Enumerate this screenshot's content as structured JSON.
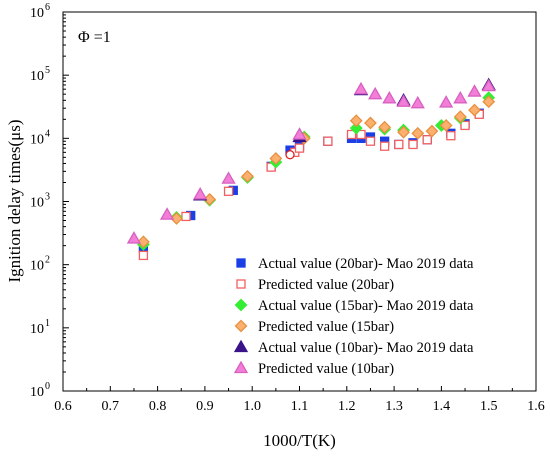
{
  "chart_data": {
    "type": "scatter",
    "title": "",
    "annotation": "Φ =1",
    "xlabel": "1000/T(K)",
    "ylabel": "Ignition delay times(μs)",
    "xlim": [
      0.6,
      1.6
    ],
    "ylim": [
      1,
      1000000
    ],
    "yscale": "log",
    "x_ticks": [
      "0.6",
      "0.7",
      "0.8",
      "0.9",
      "1.0",
      "1.1",
      "1.2",
      "1.3",
      "1.4",
      "1.5",
      "1.6"
    ],
    "y_tick_bases": [
      "10",
      "10",
      "10",
      "10",
      "10",
      "10",
      "10"
    ],
    "y_tick_exps": [
      "0",
      "1",
      "2",
      "3",
      "4",
      "5",
      "6"
    ],
    "legend_position": "bottom-right",
    "grid": false,
    "series": [
      {
        "name": "Actual value (20bar)- Mao 2019 data",
        "marker": "square",
        "filled": true,
        "color": "#1a3fe6",
        "edge": "#1a3fe6",
        "x": [
          0.77,
          0.87,
          0.96,
          1.04,
          1.08,
          1.1,
          1.16,
          1.21,
          1.23,
          1.25,
          1.28,
          1.31,
          1.34,
          1.37,
          1.42,
          1.45,
          1.48
        ],
        "y": [
          180,
          600,
          1500,
          3600,
          6500,
          7500,
          9000,
          10000,
          10000,
          10500,
          9000,
          8000,
          8500,
          9500,
          12000,
          17000,
          25000
        ]
      },
      {
        "name": "Predicted value (20bar)",
        "marker": "square",
        "filled": false,
        "color": "#ffffff",
        "edge": "#f06060",
        "x": [
          0.77,
          0.86,
          0.95,
          1.04,
          1.09,
          1.1,
          1.16,
          1.21,
          1.23,
          1.25,
          1.28,
          1.31,
          1.34,
          1.37,
          1.42,
          1.45,
          1.48
        ],
        "y": [
          140,
          580,
          1450,
          3500,
          6000,
          7000,
          9000,
          11500,
          11500,
          9000,
          7500,
          8000,
          8000,
          9500,
          11000,
          16000,
          24000
        ]
      },
      {
        "name": "Actual value (15bar)- Mao 2019 data",
        "marker": "diamond",
        "filled": true,
        "color": "#33ee33",
        "edge": "#33ee33",
        "x": [
          0.77,
          0.84,
          0.91,
          0.99,
          1.05,
          1.11,
          1.22,
          1.28,
          1.32,
          1.4,
          1.44,
          1.5
        ],
        "y": [
          210,
          560,
          1050,
          2400,
          4200,
          10500,
          14500,
          14000,
          13500,
          16000,
          21000,
          44000
        ]
      },
      {
        "name": "Predicted value (15bar)",
        "marker": "diamond",
        "filled": true,
        "color": "#fbb070",
        "edge": "#e89040",
        "x": [
          0.77,
          0.84,
          0.91,
          0.99,
          1.05,
          1.11,
          1.22,
          1.25,
          1.28,
          1.32,
          1.35,
          1.38,
          1.41,
          1.44,
          1.47,
          1.5
        ],
        "y": [
          230,
          540,
          1080,
          2500,
          4800,
          10000,
          19000,
          17500,
          15000,
          12500,
          12000,
          13000,
          16000,
          22000,
          28000,
          38000
        ]
      },
      {
        "name": "Actual value (10bar)- Mao 2019 data",
        "marker": "triangle",
        "filled": true,
        "color": "#3a128a",
        "edge": "#3a128a",
        "x": [
          0.89,
          1.1,
          1.23,
          1.32,
          1.5
        ],
        "y": [
          1250,
          10500,
          58000,
          40000,
          70000
        ]
      },
      {
        "name": "Predicted value (10bar)",
        "marker": "triangle",
        "filled": true,
        "color": "#f27ed8",
        "edge": "#d860c0",
        "x": [
          0.75,
          0.82,
          0.89,
          0.95,
          1.1,
          1.23,
          1.26,
          1.29,
          1.32,
          1.35,
          1.41,
          1.44,
          1.47,
          1.5
        ],
        "y": [
          260,
          620,
          1300,
          2300,
          11500,
          60000,
          50000,
          43000,
          38000,
          36000,
          37000,
          43000,
          55000,
          67000
        ]
      },
      {
        "name": "",
        "marker": "circle",
        "filled": false,
        "color": "#ffffff",
        "edge": "#e02020",
        "x": [
          1.08
        ],
        "y": [
          5500
        ]
      }
    ]
  }
}
